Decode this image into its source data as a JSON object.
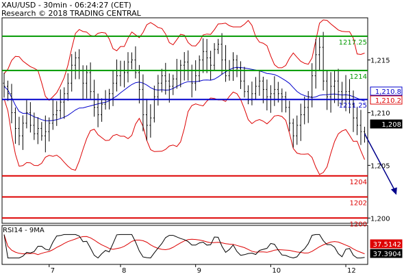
{
  "header": {
    "line1": "XAU/USD - 30min - 06:24:27 (CET)",
    "line2": "Research © 2018 TRADING CENTRAL"
  },
  "colors": {
    "resistance": "#009900",
    "support": "#dd0000",
    "pivot": "#0000cc",
    "bollinger": "#dd0000",
    "moving_average": "#0000cc",
    "rsi": "#000000",
    "rsi_ma": "#dd0000",
    "arrow": "#00008b"
  },
  "chart_data": [
    {
      "type": "candlestick",
      "title": "XAU/USD - 30min",
      "price_axis": {
        "ylim": [
          1.1995,
          1.219
        ],
        "ticks": [
          {
            "value": 1.215,
            "label": "1,215"
          },
          {
            "value": 1.21,
            "label": "1,210"
          },
          {
            "value": 1.205,
            "label": "1,205"
          },
          {
            "value": 1.2,
            "label": "1,200"
          }
        ]
      },
      "date_ticks": [
        {
          "label": "7",
          "index": 12
        },
        {
          "label": "8",
          "index": 31
        },
        {
          "label": "9",
          "index": 51
        },
        {
          "label": "10",
          "index": 71
        },
        {
          "label": "12",
          "index": 91
        }
      ],
      "levels": [
        {
          "value": 1.21725,
          "label": "1217.25",
          "role": "resistance"
        },
        {
          "value": 1.214,
          "label": "1214",
          "role": "resistance"
        },
        {
          "value": 1.21125,
          "label": "1211.25",
          "role": "pivot"
        },
        {
          "value": 1.204,
          "label": "1204",
          "role": "support"
        },
        {
          "value": 1.202,
          "label": "1202",
          "role": "support"
        },
        {
          "value": 1.2,
          "label": "1200",
          "role": "support"
        }
      ],
      "value_tags": [
        {
          "value": 1.2108,
          "label": "1,210.8",
          "style": "pivot"
        },
        {
          "value": 1.2102,
          "label": "1,210.2",
          "style": "support"
        },
        {
          "value": 1.208,
          "label": "1,208",
          "style": "last"
        }
      ],
      "closes": [
        1.2125,
        1.2118,
        1.21,
        1.2085,
        1.2078,
        1.209,
        1.21,
        1.2088,
        1.208,
        1.2085,
        1.2078,
        1.2082,
        1.209,
        1.2098,
        1.2102,
        1.211,
        1.2118,
        1.2128,
        1.2145,
        1.2152,
        1.214,
        1.2128,
        1.2138,
        1.212,
        1.2105,
        1.2098,
        1.2108,
        1.2112,
        1.2118,
        1.2128,
        1.2135,
        1.214,
        1.2138,
        1.2148,
        1.215,
        1.2138,
        1.2122,
        1.2098,
        1.2088,
        1.2095,
        1.2115,
        1.2128,
        1.2135,
        1.213,
        1.2125,
        1.2132,
        1.214,
        1.2145,
        1.2148,
        1.214,
        1.2128,
        1.2135,
        1.215,
        1.2158,
        1.2152,
        1.2145,
        1.216,
        1.2165,
        1.215,
        1.2135,
        1.214,
        1.215,
        1.2142,
        1.213,
        1.212,
        1.2112,
        1.2118,
        1.2125,
        1.213,
        1.2122,
        1.2115,
        1.2118,
        1.2122,
        1.2118,
        1.2115,
        1.2105,
        1.209,
        1.2078,
        1.2088,
        1.2098,
        1.2105,
        1.2115,
        1.2135,
        1.2155,
        1.2162,
        1.213,
        1.2115,
        1.2125,
        1.213,
        1.212,
        1.2112,
        1.212,
        1.2108,
        1.2095,
        1.2088,
        1.2082,
        1.208
      ],
      "forecast_target": {
        "from_index": 96,
        "from_value": 1.208,
        "to_value": 1.2022,
        "to_index": 103
      },
      "note": "OHLC candles approximated from the image; levels are exact labels"
    },
    {
      "type": "line",
      "title": "RSI14 - 9MA",
      "ylim": [
        0,
        100
      ],
      "value_tags": [
        {
          "value": 37.5142,
          "label": "37.5142",
          "style": "rsi_ma"
        },
        {
          "value": 37.3904,
          "label": "37.3904",
          "style": "rsi"
        }
      ]
    }
  ]
}
